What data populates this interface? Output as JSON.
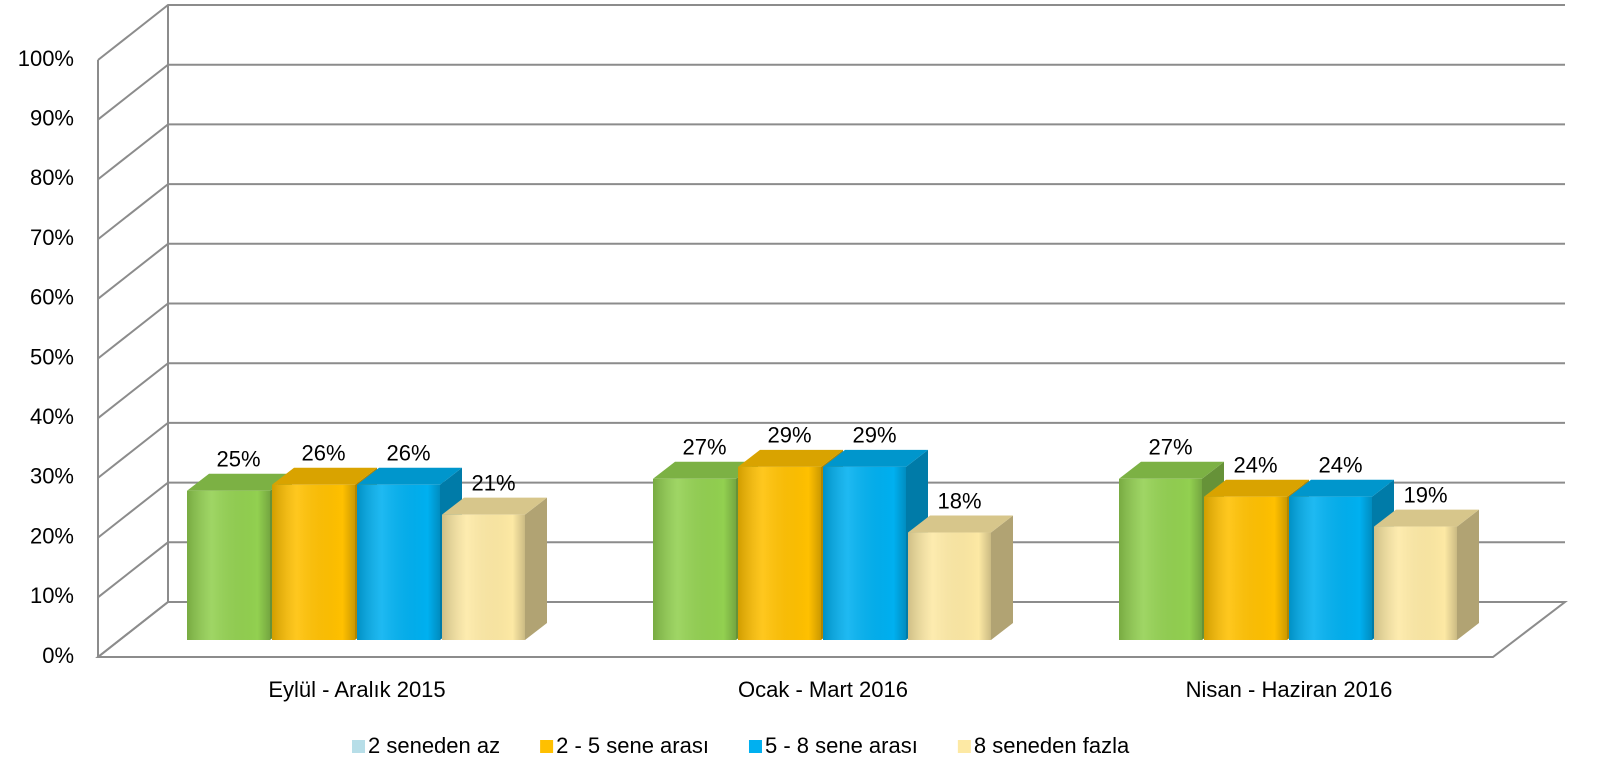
{
  "chart_data": {
    "type": "bar3d",
    "categories": [
      "Eylül - Aralık 2015",
      "Ocak - Mart 2016",
      "Nisan - Haziran 2016"
    ],
    "series": [
      {
        "name": "2 seneden az",
        "color": "#92d050",
        "legend_color": "#b7dee8",
        "values": [
          25,
          27,
          27
        ],
        "value_labels": [
          "25%",
          "27%",
          "27%"
        ]
      },
      {
        "name": "2 - 5 sene arası",
        "color": "#ffc000",
        "values": [
          26,
          29,
          24
        ],
        "value_labels": [
          "26%",
          "29%",
          "24%"
        ]
      },
      {
        "name": "5 - 8 sene arası",
        "color": "#00b0f0",
        "values": [
          26,
          29,
          24
        ],
        "value_labels": [
          "26%",
          "29%",
          "24%"
        ]
      },
      {
        "name": "8 seneden fazla",
        "color": "#fde9a4",
        "values": [
          21,
          18,
          19
        ],
        "value_labels": [
          "21%",
          "18%",
          "19%"
        ]
      }
    ],
    "ylim": [
      0,
      100
    ],
    "yticks": [
      {
        "value": 0,
        "label": "0%"
      },
      {
        "value": 10,
        "label": "10%"
      },
      {
        "value": 20,
        "label": "20%"
      },
      {
        "value": 30,
        "label": "30%"
      },
      {
        "value": 40,
        "label": "40%"
      },
      {
        "value": 50,
        "label": "50%"
      },
      {
        "value": 60,
        "label": "60%"
      },
      {
        "value": 70,
        "label": "70%"
      },
      {
        "value": 80,
        "label": "80%"
      },
      {
        "value": 90,
        "label": "90%"
      },
      {
        "value": 100,
        "label": "100%"
      }
    ],
    "grid": true,
    "legend": "bottom"
  }
}
